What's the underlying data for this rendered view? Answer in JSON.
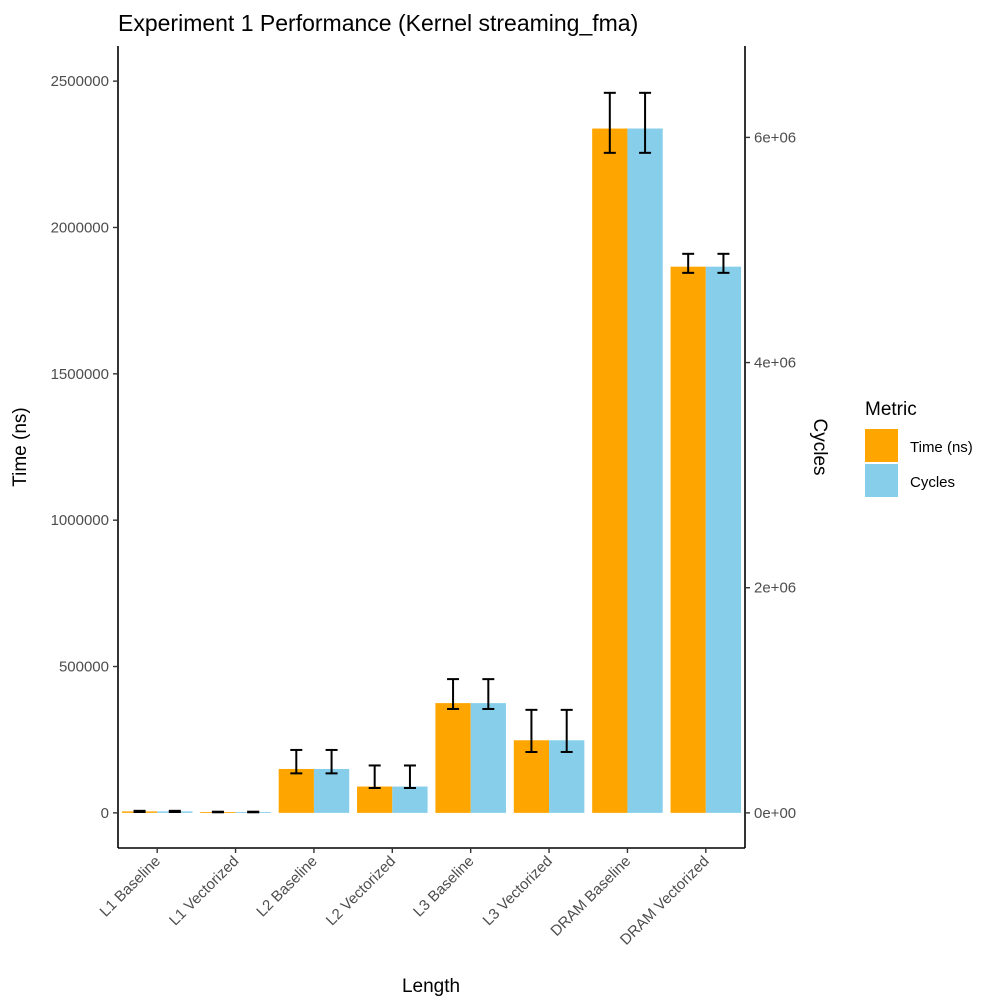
{
  "chart_data": {
    "type": "bar",
    "title": "Experiment 1 Performance (Kernel streaming_fma)",
    "xlabel": "Length",
    "ylabel": "Time (ns)",
    "y2label": "Cycles",
    "categories": [
      "L1 Baseline",
      "L1 Vectorized",
      "L2 Baseline",
      "L2 Vectorized",
      "L3 Baseline",
      "L3 Vectorized",
      "DRAM Baseline",
      "DRAM Vectorized"
    ],
    "ylim": [
      -120000,
      2620000
    ],
    "y_ticks": [
      0,
      500000,
      1000000,
      1500000,
      2000000,
      2500000
    ],
    "y_tick_labels": [
      "0",
      "500000",
      "1000000",
      "1500000",
      "2000000",
      "2500000"
    ],
    "y2_scale": 2.6,
    "y2_ticks": [
      0,
      2000000,
      4000000,
      6000000
    ],
    "y2_tick_labels": [
      "0e+00",
      "2e+06",
      "4e+06",
      "6e+06"
    ],
    "series": [
      {
        "name": "Time (ns)",
        "color": "#FFA500",
        "values": [
          5000,
          3000,
          150000,
          90000,
          375000,
          248000,
          2338000,
          1866000
        ],
        "error_low": [
          3000,
          2000,
          135000,
          85000,
          355000,
          208000,
          2255000,
          1845000
        ],
        "error_high": [
          7000,
          4000,
          215000,
          162000,
          457000,
          352000,
          2460000,
          1910000
        ]
      },
      {
        "name": "Cycles",
        "color": "#87CEEB",
        "values": [
          13000,
          8000,
          390000,
          234000,
          975000,
          645000,
          6079000,
          4852000
        ],
        "error_low": [
          7800,
          5200,
          351000,
          221000,
          923000,
          541000,
          5863000,
          4797000
        ],
        "error_high": [
          18200,
          10400,
          559000,
          421000,
          1188000,
          915000,
          6396000,
          4966000
        ]
      }
    ],
    "legend": {
      "title": "Metric",
      "position": "right"
    }
  }
}
